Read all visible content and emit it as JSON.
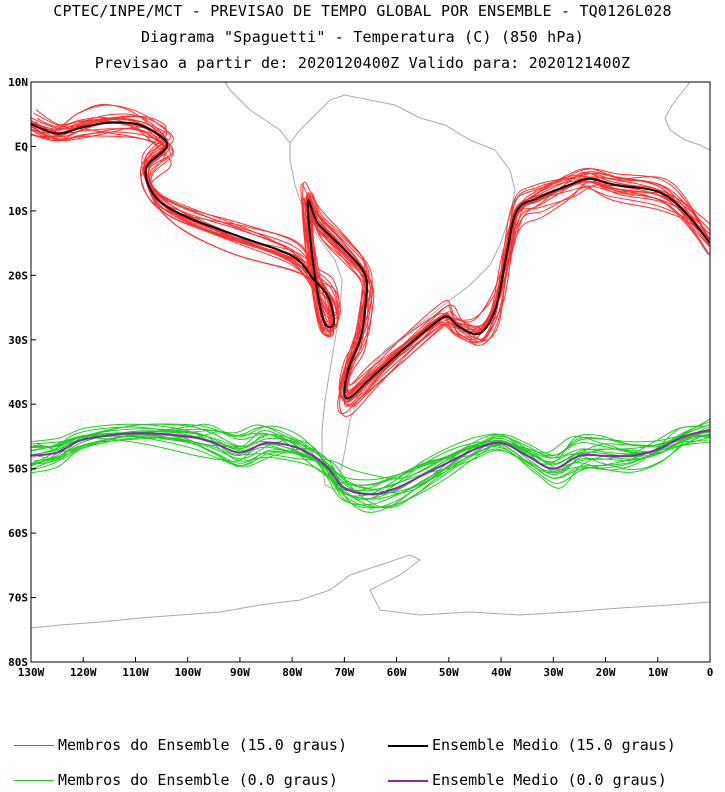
{
  "chart_data": {
    "type": "line",
    "title": "CPTEC/INPE/MCT - PREVISAO DE TEMPO GLOBAL POR ENSEMBLE - TQ0126L028",
    "subtitle": "Diagrama \"Spaguetti\" - Temperatura (C) (850 hPa)",
    "info": "Previsao a partir de: 2020120400Z  Valido para: 2020121400Z",
    "x_range": [
      -130,
      0
    ],
    "y_range": [
      -80,
      10
    ],
    "x_ticks": [
      {
        "value": -130,
        "label": "130W"
      },
      {
        "value": -120,
        "label": "120W"
      },
      {
        "value": -110,
        "label": "110W"
      },
      {
        "value": -100,
        "label": "100W"
      },
      {
        "value": -90,
        "label": "90W"
      },
      {
        "value": -80,
        "label": "80W"
      },
      {
        "value": -70,
        "label": "70W"
      },
      {
        "value": -60,
        "label": "60W"
      },
      {
        "value": -50,
        "label": "50W"
      },
      {
        "value": -40,
        "label": "40W"
      },
      {
        "value": -30,
        "label": "30W"
      },
      {
        "value": -20,
        "label": "20W"
      },
      {
        "value": -10,
        "label": "10W"
      },
      {
        "value": 0,
        "label": "0"
      }
    ],
    "y_ticks": [
      {
        "value": 10,
        "label": "10N"
      },
      {
        "value": 0,
        "label": "EQ"
      },
      {
        "value": -10,
        "label": "10S"
      },
      {
        "value": -20,
        "label": "20S"
      },
      {
        "value": -30,
        "label": "30S"
      },
      {
        "value": -40,
        "label": "40S"
      },
      {
        "value": -50,
        "label": "50S"
      },
      {
        "value": -60,
        "label": "60S"
      },
      {
        "value": -70,
        "label": "70S"
      },
      {
        "value": -80,
        "label": "80S"
      }
    ],
    "legend": [
      {
        "label": "Membros do Ensemble (15.0 graus)",
        "color": "#ff3030"
      },
      {
        "label": "Ensemble Medio (15.0 graus)",
        "color": "#000000"
      },
      {
        "label": "Membros do Ensemble (0.0 graus)",
        "color": "#22cc22"
      },
      {
        "label": "Ensemble Medio (0.0 graus)",
        "color": "#9020c0"
      }
    ],
    "series": [
      {
        "name": "Ensemble Medio (15.0 graus)",
        "color": "#000000",
        "points": [
          [
            -130,
            3.5
          ],
          [
            -125,
            2
          ],
          [
            -120,
            3
          ],
          [
            -115,
            3.7
          ],
          [
            -110,
            3.5
          ],
          [
            -106,
            2
          ],
          [
            -104,
            0
          ],
          [
            -108,
            -3.5
          ],
          [
            -106,
            -8
          ],
          [
            -100,
            -11
          ],
          [
            -90,
            -14
          ],
          [
            -80,
            -17
          ],
          [
            -76,
            -20.5
          ],
          [
            -73,
            -23.5
          ],
          [
            -72,
            -27.5
          ],
          [
            -74,
            -27
          ],
          [
            -76,
            -18
          ],
          [
            -77,
            -8.5
          ],
          [
            -75,
            -12
          ],
          [
            -70,
            -16
          ],
          [
            -66,
            -20
          ],
          [
            -66,
            -25
          ],
          [
            -67,
            -30
          ],
          [
            -69,
            -34
          ],
          [
            -70,
            -38
          ],
          [
            -69,
            -39
          ],
          [
            -65,
            -36
          ],
          [
            -58,
            -31
          ],
          [
            -52,
            -27
          ],
          [
            -50,
            -26.5
          ],
          [
            -48,
            -28
          ],
          [
            -44,
            -29
          ],
          [
            -41,
            -25
          ],
          [
            -39,
            -17
          ],
          [
            -37,
            -10
          ],
          [
            -33,
            -8
          ],
          [
            -27,
            -6
          ],
          [
            -23,
            -5
          ],
          [
            -18,
            -6
          ],
          [
            -10,
            -7
          ],
          [
            -5,
            -10
          ],
          [
            0,
            -15
          ]
        ]
      },
      {
        "name": "Ensemble Medio (0.0 graus)",
        "color": "#9020c0",
        "points": [
          [
            -130,
            -48
          ],
          [
            -125,
            -47.5
          ],
          [
            -120,
            -45.5
          ],
          [
            -110,
            -44.5
          ],
          [
            -100,
            -45
          ],
          [
            -95,
            -46
          ],
          [
            -90,
            -47.5
          ],
          [
            -85,
            -46
          ],
          [
            -80,
            -46.5
          ],
          [
            -76,
            -48
          ],
          [
            -73,
            -50
          ],
          [
            -70,
            -53
          ],
          [
            -65,
            -54
          ],
          [
            -60,
            -53
          ],
          [
            -55,
            -51
          ],
          [
            -50,
            -49
          ],
          [
            -45,
            -47
          ],
          [
            -40,
            -46
          ],
          [
            -35,
            -48
          ],
          [
            -30,
            -50
          ],
          [
            -25,
            -48
          ],
          [
            -20,
            -48
          ],
          [
            -15,
            -48
          ],
          [
            -10,
            -47
          ],
          [
            -5,
            -45
          ],
          [
            0,
            -44
          ]
        ]
      },
      {
        "name": "Membros do Ensemble (15.0 graus)",
        "color": "#ff3030",
        "spread": 3.5,
        "count": 20,
        "base": "Ensemble Medio (15.0 graus)"
      },
      {
        "name": "Membros do Ensemble (0.0 graus)",
        "color": "#22cc22",
        "spread": 4,
        "count": 20,
        "base": "Ensemble Medio (0.0 graus)"
      }
    ]
  }
}
